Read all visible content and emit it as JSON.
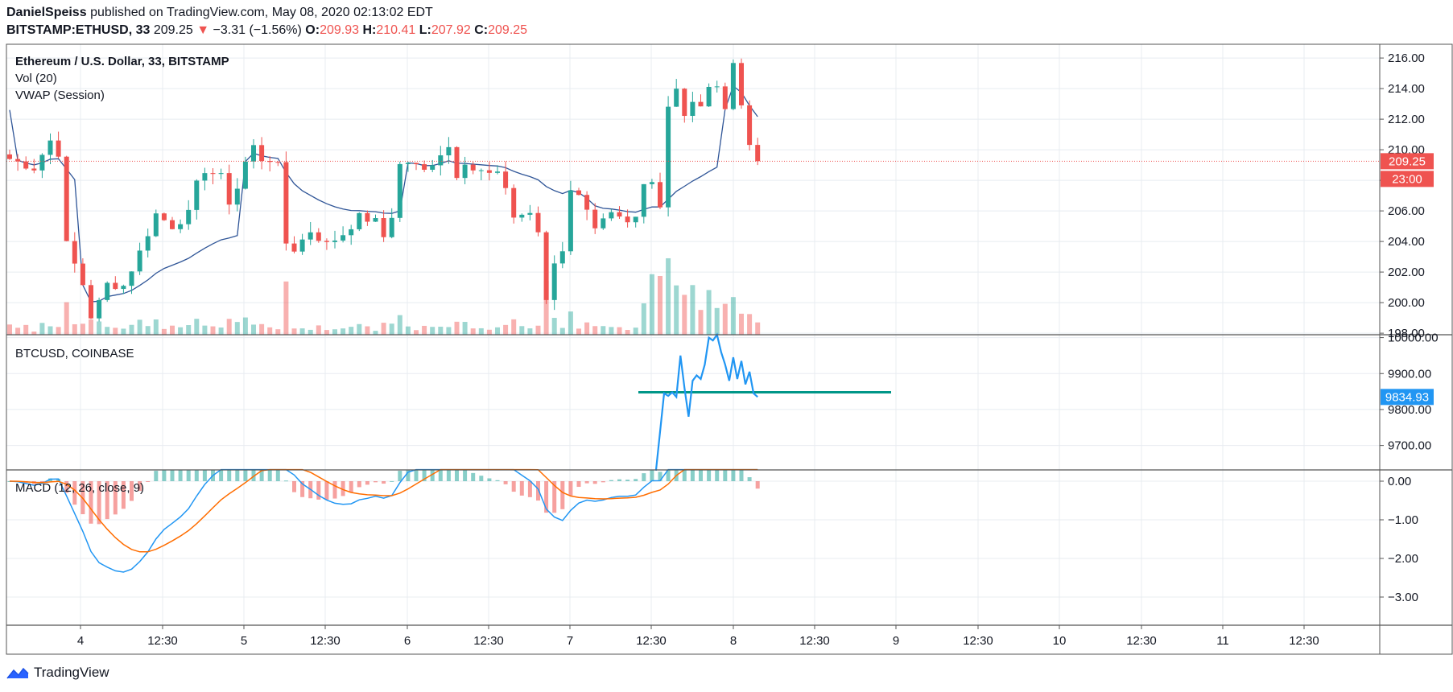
{
  "header": {
    "author": "DanielSpeiss",
    "published_text": "published on TradingView.com, May 08, 2020 02:13:02 EDT",
    "symbol": "BITSTAMP:ETHUSD, 33",
    "last": "209.25",
    "change_arrow": "▼",
    "change": "−3.31 (−1.56%)",
    "o_label": "O:",
    "o_value": "209.93",
    "h_label": "H:",
    "h_value": "210.41",
    "l_label": "L:",
    "l_value": "207.92",
    "c_label": "C:",
    "c_value": "209.25"
  },
  "panes": {
    "main": {
      "title": "Ethereum / U.S. Dollar, 33, BITSTAMP",
      "vol_label": "Vol (20)",
      "vwap_label": "VWAP (Session)"
    },
    "btc": {
      "title": "BTCUSD, COINBASE"
    },
    "macd": {
      "title": "MACD (12, 26, close, 9)"
    }
  },
  "footer": {
    "brand": "TradingView",
    "icon": "tradingview-logo-icon"
  },
  "colors": {
    "up": "#26a69a",
    "down": "#ef5350",
    "vwap": "#2f5597",
    "btc_line": "#2196f3",
    "btc_level": "#009688",
    "macd": "#2196f3",
    "signal": "#ff6d00",
    "grid": "#e8ecf1"
  },
  "chart_data": [
    {
      "type": "candlestick",
      "title": "Ethereum / U.S. Dollar, 33, BITSTAMP",
      "ylim": [
        197.9,
        216.9
      ],
      "y_ticks": [
        "216.00",
        "214.00",
        "212.00",
        "210.00",
        "208.00",
        "206.00",
        "204.00",
        "202.00",
        "200.00",
        "198.00"
      ],
      "x_ticks": [
        "4",
        "12:30",
        "5",
        "12:30",
        "6",
        "12:30",
        "7",
        "12:30",
        "8",
        "12:30",
        "9",
        "12:30",
        "10",
        "12:30",
        "11",
        "12:30"
      ],
      "last_price_label": "209.25",
      "countdown_label": "23:00",
      "close_path": [
        [
          0,
          209.4
        ],
        [
          3,
          208.8
        ],
        [
          5,
          210.6
        ],
        [
          6,
          209.8
        ],
        [
          7,
          203.8
        ],
        [
          9,
          201.2
        ],
        [
          10,
          199.1
        ],
        [
          11,
          200.0
        ],
        [
          12,
          201.2
        ],
        [
          14,
          201.1
        ],
        [
          16,
          203.3
        ],
        [
          18,
          205.8
        ],
        [
          20,
          205.0
        ],
        [
          22,
          205.8
        ],
        [
          23,
          207.7
        ],
        [
          24,
          208.7
        ],
        [
          26,
          208.2
        ],
        [
          27,
          206.6
        ],
        [
          28,
          207.5
        ],
        [
          29,
          209.2
        ],
        [
          30,
          210.2
        ],
        [
          31,
          209.4
        ],
        [
          32,
          209.4
        ],
        [
          33,
          208.9
        ],
        [
          34,
          203.9
        ],
        [
          35,
          203.5
        ],
        [
          37,
          204.7
        ],
        [
          39,
          203.8
        ],
        [
          41,
          204.5
        ],
        [
          43,
          205.6
        ],
        [
          45,
          205.3
        ],
        [
          46,
          204.3
        ],
        [
          47,
          205.7
        ],
        [
          48,
          209.0
        ],
        [
          49,
          209.2
        ],
        [
          51,
          208.6
        ],
        [
          53,
          209.8
        ],
        [
          54,
          210.2
        ],
        [
          55,
          208.4
        ],
        [
          56,
          209.3
        ],
        [
          57,
          208.7
        ],
        [
          59,
          208.4
        ],
        [
          60,
          208.3
        ],
        [
          61,
          207.6
        ],
        [
          62,
          205.6
        ],
        [
          64,
          205.9
        ],
        [
          65,
          204.4
        ],
        [
          66,
          200.2
        ],
        [
          67,
          202.6
        ],
        [
          68,
          203.5
        ],
        [
          69,
          207.5
        ],
        [
          71,
          206.3
        ],
        [
          72,
          205.0
        ],
        [
          74,
          205.7
        ],
        [
          76,
          205.0
        ],
        [
          77,
          205.4
        ],
        [
          78,
          207.6
        ],
        [
          79,
          207.8
        ],
        [
          80,
          206.2
        ],
        [
          81,
          213.1
        ],
        [
          82,
          214.1
        ],
        [
          83,
          212.3
        ],
        [
          84,
          213.3
        ],
        [
          85,
          212.9
        ],
        [
          86,
          214.0
        ],
        [
          87,
          214.0
        ],
        [
          88,
          212.8
        ],
        [
          89,
          215.4
        ],
        [
          90,
          213.2
        ],
        [
          91,
          210.4
        ],
        [
          91.5,
          209.25
        ]
      ],
      "series": [
        {
          "name": "Vol (20)",
          "type": "histogram"
        },
        {
          "name": "VWAP (Session)",
          "type": "line",
          "color": "#2f5597"
        }
      ]
    },
    {
      "type": "line",
      "title": "BTCUSD, COINBASE",
      "ylim": [
        9632,
        10008
      ],
      "y_ticks": [
        "10000.00",
        "9900.00",
        "9800.00",
        "9700.00"
      ],
      "last_value_label": "9834.93",
      "horizontal_level": 9848,
      "series": [
        {
          "name": "BTCUSD",
          "points": [
            [
              79.5,
              9630
            ],
            [
              80.5,
              9845
            ],
            [
              81,
              9838
            ],
            [
              81.5,
              9848
            ],
            [
              82,
              9835
            ],
            [
              82.5,
              9950
            ],
            [
              83,
              9860
            ],
            [
              83.5,
              9780
            ],
            [
              84,
              9880
            ],
            [
              84.5,
              9895
            ],
            [
              85,
              9885
            ],
            [
              85.5,
              9925
            ],
            [
              86,
              10000
            ],
            [
              86.5,
              9992
            ],
            [
              87,
              10008
            ],
            [
              87.5,
              9960
            ],
            [
              88,
              9925
            ],
            [
              88.5,
              9880
            ],
            [
              89,
              9945
            ],
            [
              89.5,
              9885
            ],
            [
              90,
              9935
            ],
            [
              90.5,
              9870
            ],
            [
              91,
              9905
            ],
            [
              91.5,
              9845
            ],
            [
              92,
              9835
            ]
          ]
        }
      ]
    },
    {
      "type": "line",
      "title": "MACD (12, 26, close, 9)",
      "ylim": [
        -3.5,
        0.0
      ],
      "y_ticks": [
        "0.00",
        "−1.00",
        "−2.00",
        "−3.00"
      ],
      "series": [
        {
          "name": "MACD",
          "color": "#2196f3"
        },
        {
          "name": "Signal",
          "color": "#ff6d00"
        },
        {
          "name": "Histogram",
          "type": "histogram"
        }
      ]
    }
  ]
}
